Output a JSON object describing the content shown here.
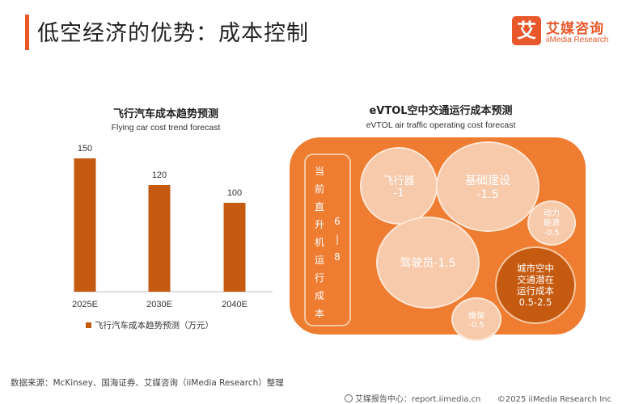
{
  "page": {
    "title": "低空经济的优势：成本控制",
    "brand_logo_char": "艾",
    "brand_name": "艾媒咨询",
    "brand_sub": "iiMedia Research",
    "source": "数据来源：McKinsey、国海证券、艾媒咨询（iiMedia Research）整理",
    "footer_center": "艾媒报告中心：report.iimedia.cn",
    "footer_right": "©2025  iiMedia Research Inc"
  },
  "chart_data": [
    {
      "type": "bar",
      "title": "飞行汽车成本趋势预测",
      "subtitle": "Flying car cost trend forecast",
      "categories": [
        "2025E",
        "2030E",
        "2040E"
      ],
      "series": [
        {
          "name": "飞行汽车成本趋势预测（万元）",
          "values": [
            150,
            120,
            100
          ]
        }
      ],
      "ylim": [
        0,
        180
      ],
      "grid": false,
      "legend": "bottom",
      "color": "#c55a11"
    },
    {
      "type": "bubble",
      "title": "eVTOL空中交通运行成本预测",
      "subtitle": "eVTOL air traffic operating cost forecast",
      "current_cost_label": [
        "当",
        "前",
        "直",
        "升",
        "机",
        "运",
        "行",
        "成",
        "本"
      ],
      "current_cost_value": [
        "6",
        "|",
        "8"
      ],
      "bubbles": [
        {
          "label": "飞行器",
          "value": "-1"
        },
        {
          "label": "基础建设",
          "value": "-1.5"
        },
        {
          "label": "动力能源",
          "value": "-0.5"
        },
        {
          "label": "驾驶员",
          "value": "-1.5"
        },
        {
          "label": "维保",
          "value": "-0.5"
        },
        {
          "label": "城市空中交通潜在运行成本",
          "value": "0.5-2.5"
        }
      ],
      "colors": {
        "panel": "#ee7c31",
        "light": "#f7caac",
        "dark": "#c55a11"
      }
    }
  ]
}
